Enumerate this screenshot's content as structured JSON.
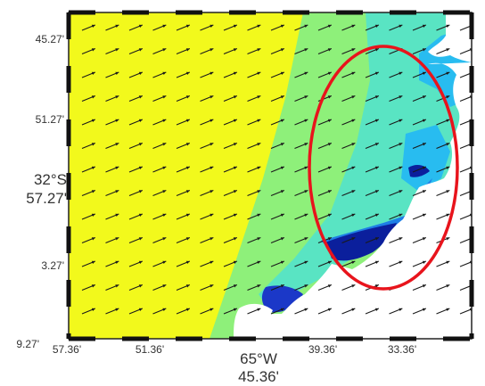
{
  "map": {
    "lat_ticks": [
      "45.27'",
      "51.27'",
      "3.27'",
      "9.27'"
    ],
    "lat_major": [
      "32°S",
      "57.27'"
    ],
    "lon_ticks": [
      "57.36'",
      "51.36'",
      "39.36'",
      "33.36'"
    ],
    "lon_major": [
      "65°W",
      "45.36'"
    ],
    "highlight_color": "#e8141c",
    "palette": {
      "offshore": "#f2f91c",
      "shelf": "#8ef07a",
      "coastal": "#59e4c3",
      "nearshore": "#28bcf0",
      "deep_blue": "#0b1f9c",
      "land": "#ffffff"
    },
    "vector_field": "wind-arrows"
  }
}
